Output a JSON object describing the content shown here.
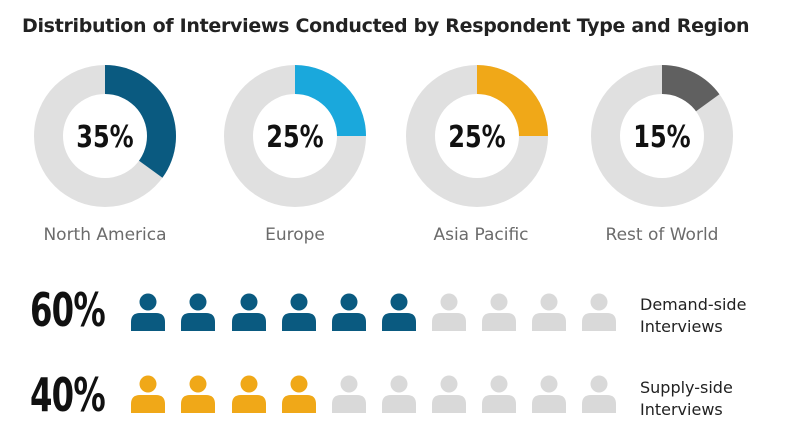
{
  "title": "Distribution of Interviews Conducted by Respondent Type and Region",
  "chart_data": [
    {
      "type": "pie",
      "subtype": "donut-set",
      "slices": [
        {
          "label": "North America",
          "value": 35,
          "display": "35%",
          "color": "#0a5a80"
        },
        {
          "label": "Europe",
          "value": 25,
          "display": "25%",
          "color": "#1aa8dc"
        },
        {
          "label": "Asia Pacific",
          "value": 25,
          "display": "25%",
          "color": "#f0a818"
        },
        {
          "label": "Rest of World",
          "value": 15,
          "display": "15%",
          "color": "#606060"
        }
      ],
      "track_color": "#e0e0e0"
    },
    {
      "type": "pictogram",
      "icon": "person-icon",
      "total_icons": 10,
      "rows": [
        {
          "value": 60,
          "display": "60%",
          "label_line1": "Demand-side",
          "label_line2": "Interviews",
          "filled": 6,
          "color": "#0a5a80"
        },
        {
          "value": 40,
          "display": "40%",
          "label_line1": "Supply-side",
          "label_line2": "Interviews",
          "filled": 4,
          "color": "#f0a818"
        }
      ],
      "empty_color": "#d9d9d9"
    }
  ]
}
